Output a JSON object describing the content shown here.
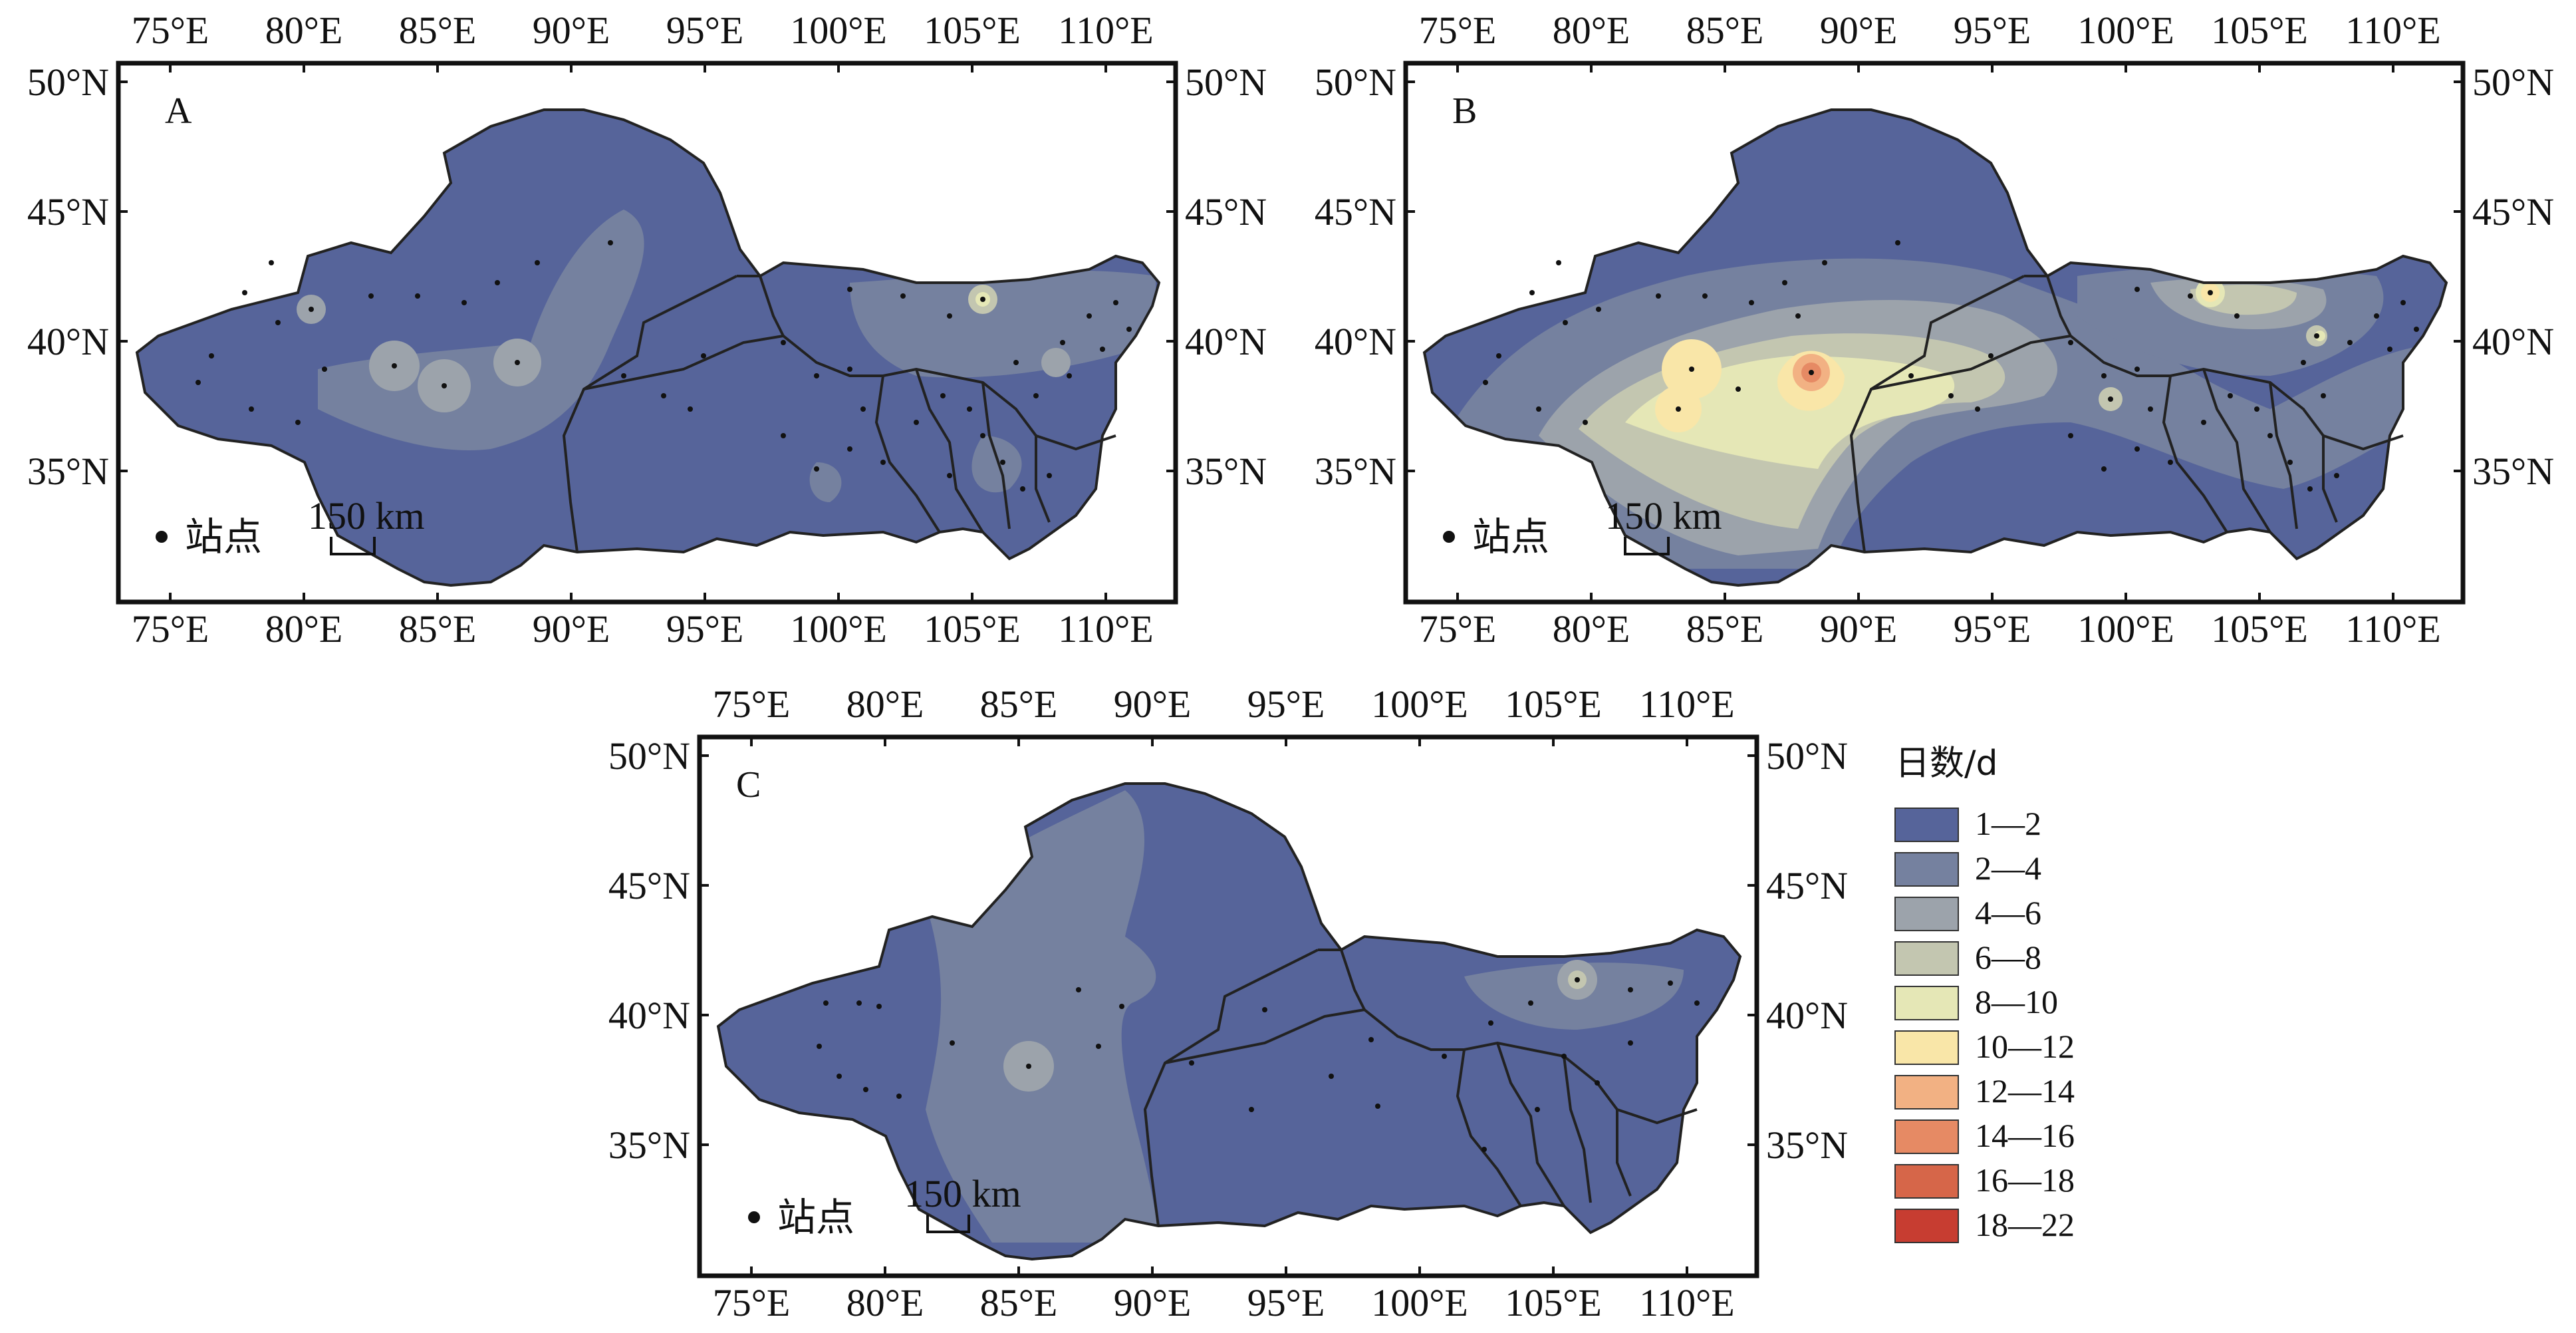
{
  "panels": [
    {
      "id": "A",
      "label": "A"
    },
    {
      "id": "B",
      "label": "B"
    },
    {
      "id": "C",
      "label": "C"
    }
  ],
  "axes": {
    "lon_labels": [
      "75°E",
      "80°E",
      "85°E",
      "90°E",
      "95°E",
      "100°E",
      "105°E",
      "110°E"
    ],
    "lat_labels": [
      "50°N",
      "45°N",
      "40°N",
      "35°N"
    ]
  },
  "station_label": "站点",
  "scale_label": "150 km",
  "legend": {
    "title": "日数/d",
    "items": [
      {
        "label": "1—2",
        "color": "#56649a"
      },
      {
        "label": "2—4",
        "color": "#75819f"
      },
      {
        "label": "4—6",
        "color": "#9ca3ab"
      },
      {
        "label": "6—8",
        "color": "#c3c6b0"
      },
      {
        "label": "8—10",
        "color": "#e5e7b6"
      },
      {
        "label": "10—12",
        "color": "#f9e6a8"
      },
      {
        "label": "12—14",
        "color": "#f2b183"
      },
      {
        "label": "14—16",
        "color": "#e68a64"
      },
      {
        "label": "16—18",
        "color": "#d66649"
      },
      {
        "label": "18—22",
        "color": "#c73d31"
      }
    ]
  }
}
